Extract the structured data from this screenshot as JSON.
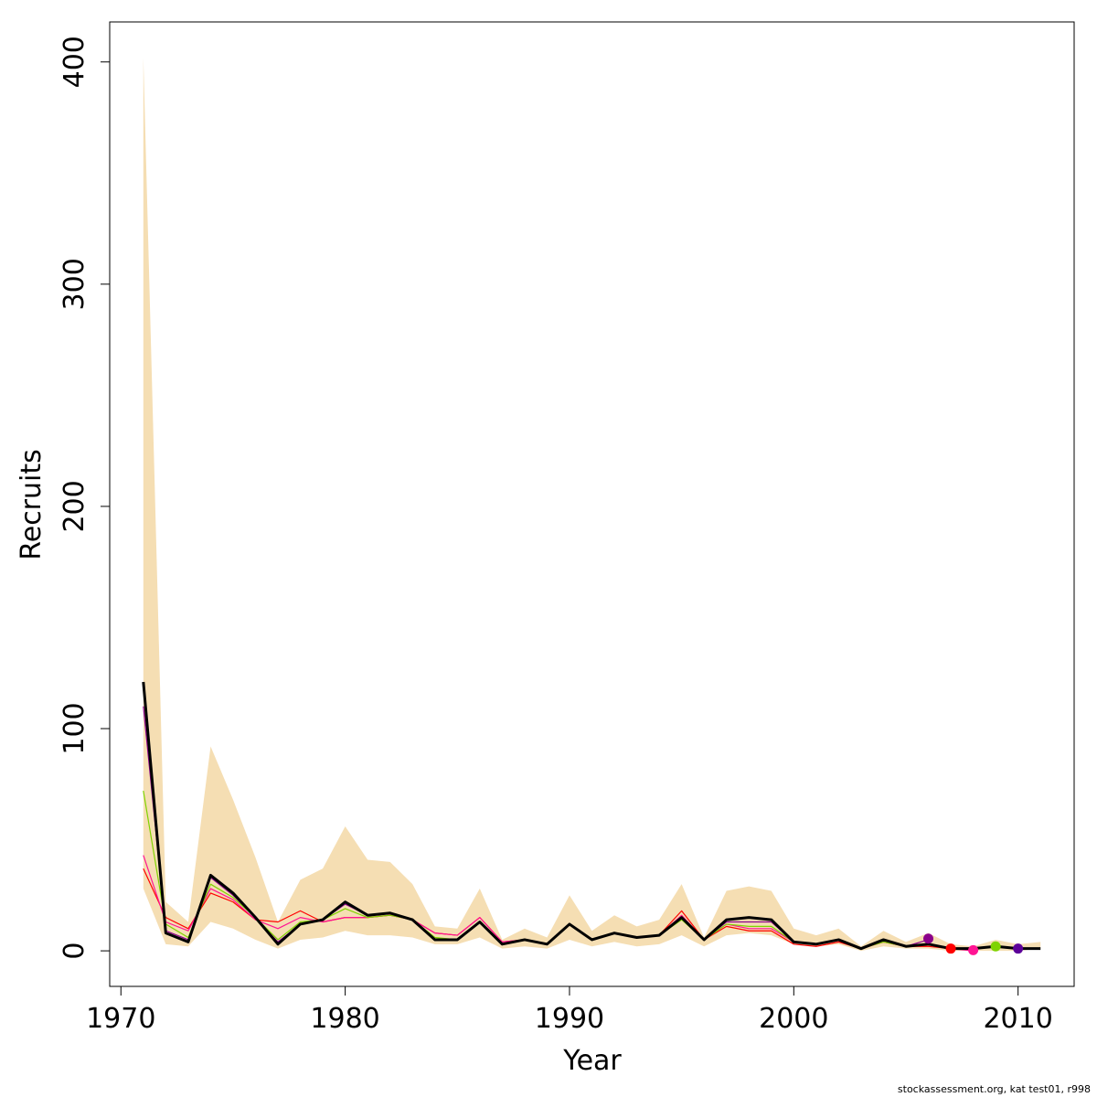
{
  "chart_data": {
    "type": "line",
    "title": "",
    "xlabel": "Year",
    "ylabel": "Recruits",
    "xlim": [
      1969.5,
      2012.5
    ],
    "ylim": [
      -16,
      418
    ],
    "x_ticks": [
      1970,
      1980,
      1990,
      2000,
      2010
    ],
    "y_ticks": [
      0,
      100,
      200,
      300,
      400
    ],
    "grid": false,
    "legend": "none",
    "band": {
      "color": "#f5deb3",
      "x": [
        1971,
        1972,
        1973,
        1974,
        1975,
        1976,
        1977,
        1978,
        1979,
        1980,
        1981,
        1982,
        1983,
        1984,
        1985,
        1986,
        1987,
        1988,
        1989,
        1990,
        1991,
        1992,
        1993,
        1994,
        1995,
        1996,
        1997,
        1998,
        1999,
        2000,
        2001,
        2002,
        2003,
        2004,
        2005,
        2006,
        2007,
        2008,
        2009,
        2010,
        2011
      ],
      "upper": [
        402,
        22,
        13,
        92,
        68,
        42,
        13,
        32,
        37,
        56,
        41,
        40,
        30,
        11,
        10,
        28,
        5,
        10,
        6,
        25,
        9,
        16,
        11,
        14,
        30,
        6,
        27,
        29,
        27,
        10,
        7,
        10,
        2,
        9,
        4,
        8,
        3,
        2,
        5,
        3,
        4
      ],
      "lower": [
        28,
        3,
        2,
        13,
        10,
        5,
        1,
        5,
        6,
        9,
        7,
        7,
        6,
        3,
        3,
        6,
        1,
        2,
        1,
        5,
        2,
        4,
        2,
        3,
        7,
        2,
        7,
        8,
        7,
        3,
        2,
        3,
        0,
        2,
        1,
        1,
        0,
        0,
        0,
        0,
        1
      ]
    },
    "series": [
      {
        "color": "#000000",
        "x": [
          1971,
          1972,
          1973,
          1974,
          1975,
          1976,
          1977,
          1978,
          1979,
          1980,
          1981,
          1982,
          1983,
          1984,
          1985,
          1986,
          1987,
          1988,
          1989,
          1990,
          1991,
          1992,
          1993,
          1994,
          1995,
          1996,
          1997,
          1998,
          1999,
          2000,
          2001,
          2002,
          2003,
          2004,
          2005,
          2006,
          2007,
          2008,
          2009,
          2010,
          2011
        ],
        "values": [
          121,
          8,
          4,
          34,
          26,
          15,
          3,
          12,
          14,
          22,
          16,
          17,
          14,
          5,
          5,
          13,
          3,
          5,
          3,
          12,
          5,
          8,
          6,
          7,
          15,
          5,
          14,
          15,
          14,
          4,
          3,
          5,
          1,
          5,
          2,
          3,
          1,
          1,
          2,
          1,
          1
        ]
      },
      {
        "color": "#7fd300",
        "x": [
          1971,
          1972,
          1973,
          1974,
          1975,
          1976,
          1977,
          1978,
          1979,
          1980,
          1981,
          1982,
          1983,
          1984,
          1985,
          1986,
          1987,
          1988,
          1989,
          1990,
          1991,
          1992,
          1993,
          1994,
          1995,
          1996,
          1997,
          1998,
          1999,
          2000,
          2001,
          2002,
          2003,
          2004,
          2005,
          2006,
          2007,
          2008,
          2009
        ],
        "values": [
          72,
          12,
          6,
          30,
          24,
          15,
          5,
          13,
          14,
          19,
          15,
          16,
          14,
          6,
          5,
          13,
          3,
          5,
          3,
          12,
          5,
          8,
          6,
          7,
          14,
          5,
          12,
          11,
          11,
          4,
          3,
          5,
          1,
          4,
          2,
          3,
          1,
          1,
          2
        ]
      },
      {
        "color": "#ff1493",
        "x": [
          1971,
          1972,
          1973,
          1974,
          1975,
          1976,
          1977,
          1978,
          1979,
          1980,
          1981,
          1982,
          1983,
          1984,
          1985,
          1986,
          1987,
          1988,
          1989,
          1990,
          1991,
          1992,
          1993,
          1994,
          1995,
          1996,
          1997,
          1998,
          1999,
          2000,
          2001,
          2002,
          2003,
          2004,
          2005,
          2006,
          2007,
          2008
        ],
        "values": [
          43,
          13,
          9,
          28,
          23,
          14,
          10,
          15,
          13,
          15,
          15,
          16,
          14,
          8,
          7,
          15,
          4,
          5,
          3,
          12,
          5,
          8,
          6,
          7,
          16,
          5,
          12,
          10,
          10,
          4,
          3,
          5,
          1,
          4,
          2,
          3,
          1,
          0
        ]
      },
      {
        "color": "#ff0000",
        "x": [
          1971,
          1972,
          1973,
          1974,
          1975,
          1976,
          1977,
          1978,
          1979,
          1980,
          1981,
          1982,
          1983,
          1984,
          1985,
          1986,
          1987,
          1988,
          1989,
          1990,
          1991,
          1992,
          1993,
          1994,
          1995,
          1996,
          1997,
          1998,
          1999,
          2000,
          2001,
          2002,
          2003,
          2004,
          2005,
          2006,
          2007
        ],
        "values": [
          37,
          15,
          10,
          26,
          22,
          14,
          13,
          18,
          13,
          15,
          15,
          16,
          14,
          8,
          7,
          15,
          4,
          5,
          3,
          12,
          5,
          8,
          6,
          7,
          18,
          5,
          11,
          9,
          9,
          3,
          2,
          4,
          1,
          4,
          2,
          2,
          1
        ]
      },
      {
        "color": "#8b008b",
        "x": [
          1971,
          1972,
          1973,
          1974,
          1975,
          1976,
          1977,
          1978,
          1979,
          1980,
          1981,
          1982,
          1983,
          1984,
          1985,
          1986,
          1987,
          1988,
          1989,
          1990,
          1991,
          1992,
          1993,
          1994,
          1995,
          1996,
          1997,
          1998,
          1999,
          2000,
          2001,
          2002,
          2003,
          2004,
          2005,
          2006
        ],
        "values": [
          110,
          9,
          5,
          33,
          25,
          15,
          4,
          12,
          14,
          21,
          16,
          17,
          14,
          5,
          5,
          13,
          3,
          5,
          3,
          12,
          5,
          8,
          6,
          7,
          15,
          5,
          13,
          13,
          13,
          4,
          3,
          5,
          1,
          5,
          2,
          5
        ]
      }
    ],
    "end_points": [
      {
        "x": 2006,
        "y": 5.5,
        "color": "#8b008b"
      },
      {
        "x": 2007,
        "y": 1,
        "color": "#ff0000"
      },
      {
        "x": 2008,
        "y": 0.3,
        "color": "#ff1493"
      },
      {
        "x": 2009,
        "y": 2,
        "color": "#7fd300"
      },
      {
        "x": 2010,
        "y": 1,
        "color": "#5c0099"
      }
    ]
  },
  "footer": {
    "text": "stockassessment.org, kat  test01, r998"
  }
}
